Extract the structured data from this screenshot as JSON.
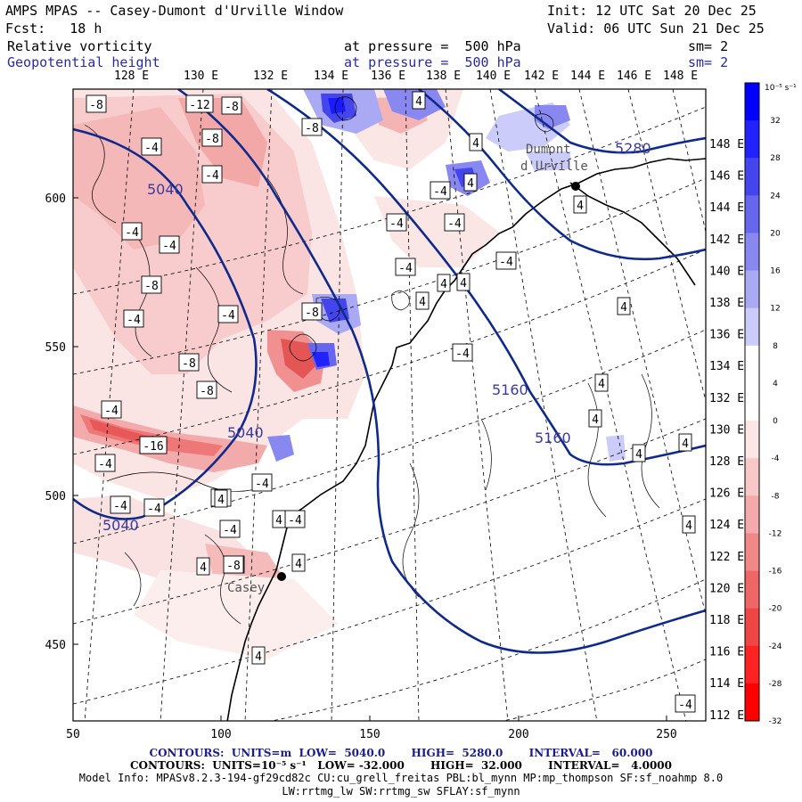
{
  "header": {
    "title": "AMPS MPAS -- Casey-Dumont d'Urville Window",
    "init": "Init: 12 UTC Sat 20 Dec 25",
    "forecast": "Fcst:   18 h",
    "valid": "Valid: 06 UTC Sun 21 Dec 25",
    "field1_name": "Relative vorticity",
    "field1_level": "at pressure =  500 hPa",
    "field1_sm": "sm= 2",
    "field2_name": "Geopotential height",
    "field2_level": "at pressure =  500 hPa",
    "field2_sm": "sm= 2"
  },
  "longitude_labels": [
    "128 E",
    "130 E",
    "132 E",
    "134 E",
    "136 E",
    "138 E",
    "140 E",
    "142 E",
    "144 E",
    "146 E",
    "148 E"
  ],
  "right_longitude_labels": [
    "148 E",
    "146 E",
    "144 E",
    "142 E",
    "140 E",
    "138 E",
    "136 E",
    "134 E",
    "132 E",
    "130 E",
    "128 E",
    "126 E",
    "124 E",
    "122 E",
    "120 E",
    "118 E",
    "116 E",
    "114 E",
    "112 E"
  ],
  "x_axis_ticks": [
    "50",
    "100",
    "150",
    "200",
    "250"
  ],
  "y_axis_ticks": [
    "600",
    "550",
    "500",
    "450"
  ],
  "colorbar": {
    "unit": "10⁻⁵ s⁻¹",
    "labels": [
      "32",
      "28",
      "24",
      "20",
      "16",
      "12",
      "8",
      "4",
      "0",
      "-4",
      "-8",
      "-12",
      "-16",
      "-20",
      "-24",
      "-28",
      "-32"
    ],
    "colors": [
      "#0000ff",
      "#2222ff",
      "#4545ee",
      "#6666ee",
      "#8888f0",
      "#aaaaf4",
      "#ccccfa",
      "#ffffff",
      "#ffffff",
      "#fde6e6",
      "#f8c8c8",
      "#f4aaaa",
      "#f08888",
      "#ee6666",
      "#ee4545",
      "#ff2222",
      "#ff0000"
    ]
  },
  "stations": [
    {
      "name": "Dumont d'Urville",
      "line1": "Dumont",
      "line2": "d'Urville"
    },
    {
      "name": "Casey",
      "line1": "Casey"
    }
  ],
  "height_contour_labels": [
    "5040",
    "5040",
    "5040",
    "5160",
    "5160",
    "5280"
  ],
  "vorticity_box_labels": [
    "-8",
    "-12",
    "-8",
    "-4",
    "-8",
    "-4",
    "-4",
    "-4",
    "-8",
    "-8",
    "-8",
    "-4",
    "-4",
    "-8",
    "-8",
    "-4",
    "-16",
    "-4",
    "-4",
    "-4",
    "-8",
    "-8",
    "-4",
    "-4",
    "-4",
    "-4",
    "-4",
    "-4",
    "-4",
    "-4",
    "4",
    "4",
    "4",
    "4",
    "4",
    "4",
    "4",
    "4",
    "4",
    "4",
    "4",
    "4",
    "4",
    "4",
    "4",
    "4",
    "4",
    "4",
    "-4",
    "-8",
    "-16",
    "-4"
  ],
  "footer": {
    "line1": "CONTOURS:  UNITS=m  LOW=  5040.0       HIGH=  5280.0       INTERVAL=   60.000",
    "line2": "CONTOURS:  UNITS=10⁻⁵ s⁻¹   LOW= -32.000       HIGH=  32.000       INTERVAL=   4.0000",
    "line3": "Model Info: MPASv8.2.3-194-gf29cd82c CU:cu_grell_freitas PBL:bl_mynn MP:mp_thompson SF:sf_noahmp 8.0",
    "line4": "LW:rrtmg_lw SW:rrtmg_sw SFLAY:sf_mynn"
  }
}
